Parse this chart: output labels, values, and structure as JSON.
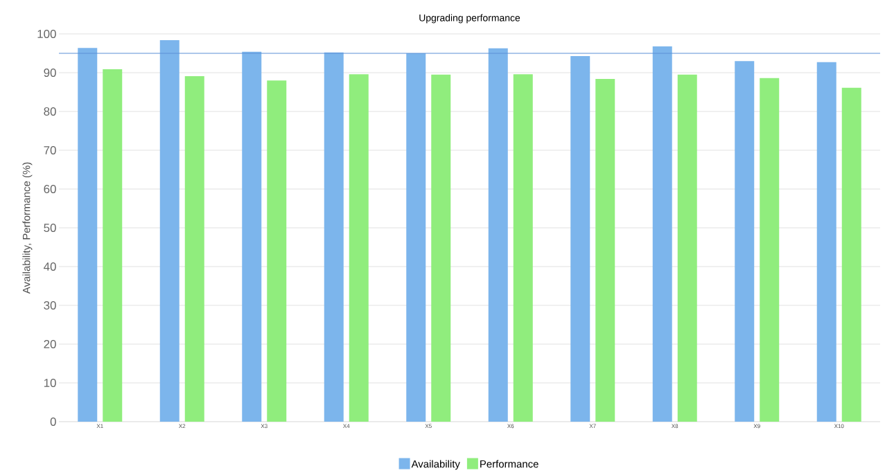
{
  "chart_data": {
    "type": "bar",
    "title": "Upgrading performance",
    "ylabel": "Availability, Performance (%)",
    "categories": [
      "X1",
      "X2",
      "X3",
      "X4",
      "X5",
      "X6",
      "X7",
      "X8",
      "X9",
      "X10"
    ],
    "series": [
      {
        "name": "Availability",
        "color": "#7cb5ec",
        "values": [
          96.4,
          98.4,
          95.4,
          95.2,
          95.0,
          96.3,
          94.3,
          96.8,
          93.0,
          92.7
        ]
      },
      {
        "name": "Performance",
        "color": "#90ed7d",
        "values": [
          90.9,
          89.1,
          88.0,
          89.6,
          89.5,
          89.6,
          88.4,
          89.5,
          88.6,
          86.1
        ]
      }
    ],
    "ylim": [
      0,
      100
    ],
    "yticks": [
      0,
      10,
      20,
      30,
      40,
      50,
      60,
      70,
      80,
      90,
      100
    ],
    "grid": "y",
    "legend": "bottom",
    "ref_lines": [
      {
        "axis": "y",
        "value": 95,
        "color": "#5b8fd6"
      }
    ]
  }
}
